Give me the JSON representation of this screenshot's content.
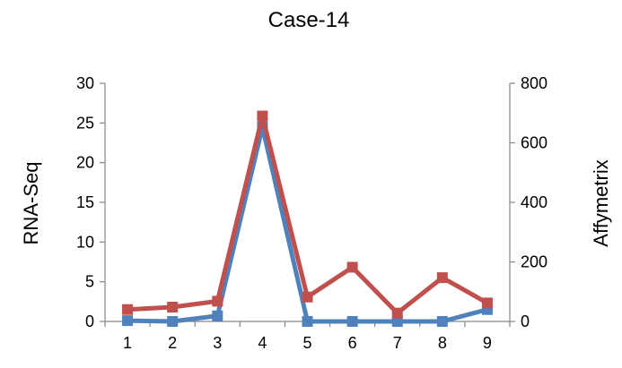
{
  "chart_data": {
    "type": "line",
    "title": "Case-14",
    "categories": [
      "1",
      "2",
      "3",
      "4",
      "5",
      "6",
      "7",
      "8",
      "9"
    ],
    "ylabel_left": "RNA-Seq",
    "ylabel_right": "Affymetrix",
    "ylim_left": [
      0,
      30
    ],
    "ylim_right": [
      0,
      800
    ],
    "yticks_left": [
      "0",
      "5",
      "10",
      "15",
      "20",
      "25",
      "30"
    ],
    "yticks_right": [
      "0",
      "200",
      "400",
      "600",
      "800"
    ],
    "grid": false,
    "legend": "none",
    "series": [
      {
        "axis": "left",
        "color": "#4F81BD",
        "marker": "square",
        "values": [
          0.1,
          0.0,
          0.7,
          24.5,
          0.0,
          0.0,
          0.0,
          0.0,
          1.5
        ]
      },
      {
        "axis": "right",
        "color": "#C0504D",
        "marker": "square",
        "values": [
          40,
          48,
          68,
          690,
          82,
          182,
          28,
          147,
          62
        ]
      }
    ]
  }
}
